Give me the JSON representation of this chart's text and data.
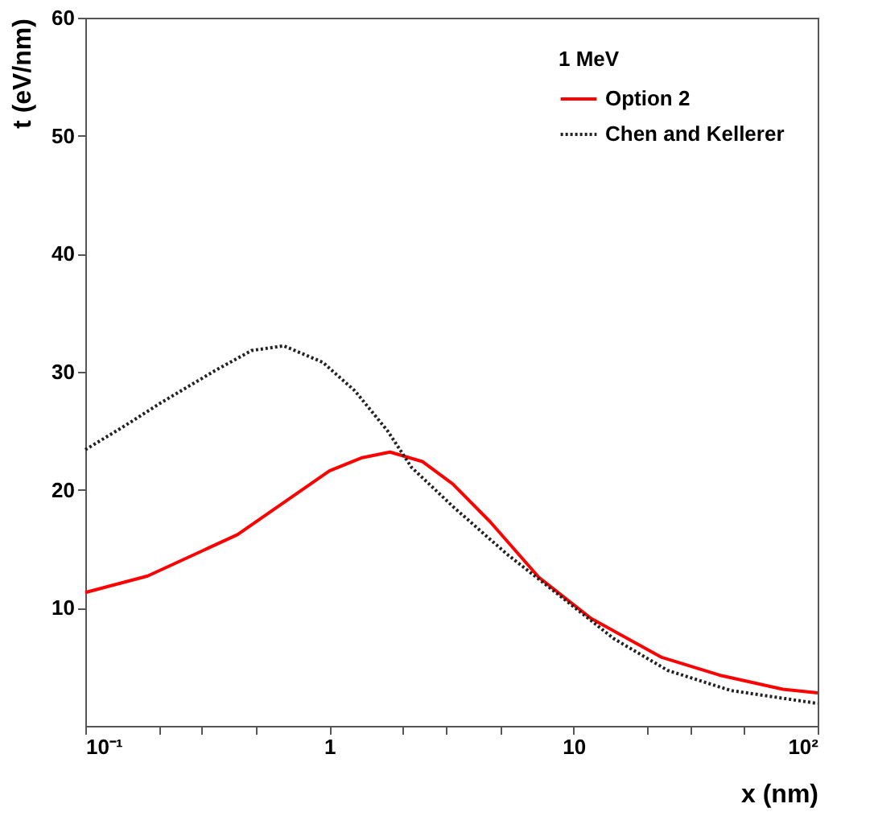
{
  "chart_data": {
    "type": "line",
    "xlabel": "x (nm)",
    "ylabel": "t (eV/nm)",
    "legend_title": "1 MeV",
    "legend": "top right",
    "log": "x",
    "grid": false,
    "xlim": [
      0.1,
      100
    ],
    "ylim": [
      0,
      60
    ],
    "xticks": [
      {
        "value": 0.1,
        "label": "10⁻¹"
      },
      {
        "value": 0.2,
        "label": null
      },
      {
        "value": 0.3,
        "label": null
      },
      {
        "value": 0.5,
        "label": null
      },
      1,
      {
        "value": 2,
        "label": null
      },
      {
        "value": 3,
        "label": null
      },
      {
        "value": 5,
        "label": null
      },
      10,
      {
        "value": 20,
        "label": null
      },
      {
        "value": 30,
        "label": null
      },
      {
        "value": 50,
        "label": null
      },
      {
        "value": 100,
        "label": "10²"
      }
    ],
    "yticks": [
      10,
      20,
      30,
      40,
      50,
      60
    ],
    "series": [
      {
        "name": "Option 2",
        "color": "#ff0000",
        "line_style": "solid",
        "x": [
          0.1,
          0.18,
          0.42,
          1,
          1.35,
          1.77,
          2.4,
          3.2,
          4.55,
          7.2,
          11.8,
          23,
          39.6,
          72,
          100
        ],
        "values": [
          11.3,
          12.7,
          16.2,
          21.6,
          22.7,
          23.2,
          22.4,
          20.5,
          17.3,
          12.6,
          9.1,
          5.8,
          4.3,
          3.1,
          2.8
        ]
      },
      {
        "name": "Chen and Kellerer",
        "color": "#222222",
        "line_style": "dotted",
        "x": [
          0.1,
          0.142,
          0.205,
          0.34,
          0.48,
          0.65,
          0.94,
          1.27,
          1.73,
          2.17,
          3.2,
          5.3,
          8.7,
          14.6,
          24.3,
          44,
          100
        ],
        "values": [
          23.4,
          25.3,
          27.4,
          30.1,
          31.8,
          32.2,
          30.8,
          28.4,
          25,
          21.9,
          18.6,
          14.6,
          11.1,
          7.4,
          4.7,
          3,
          1.9
        ]
      }
    ]
  }
}
